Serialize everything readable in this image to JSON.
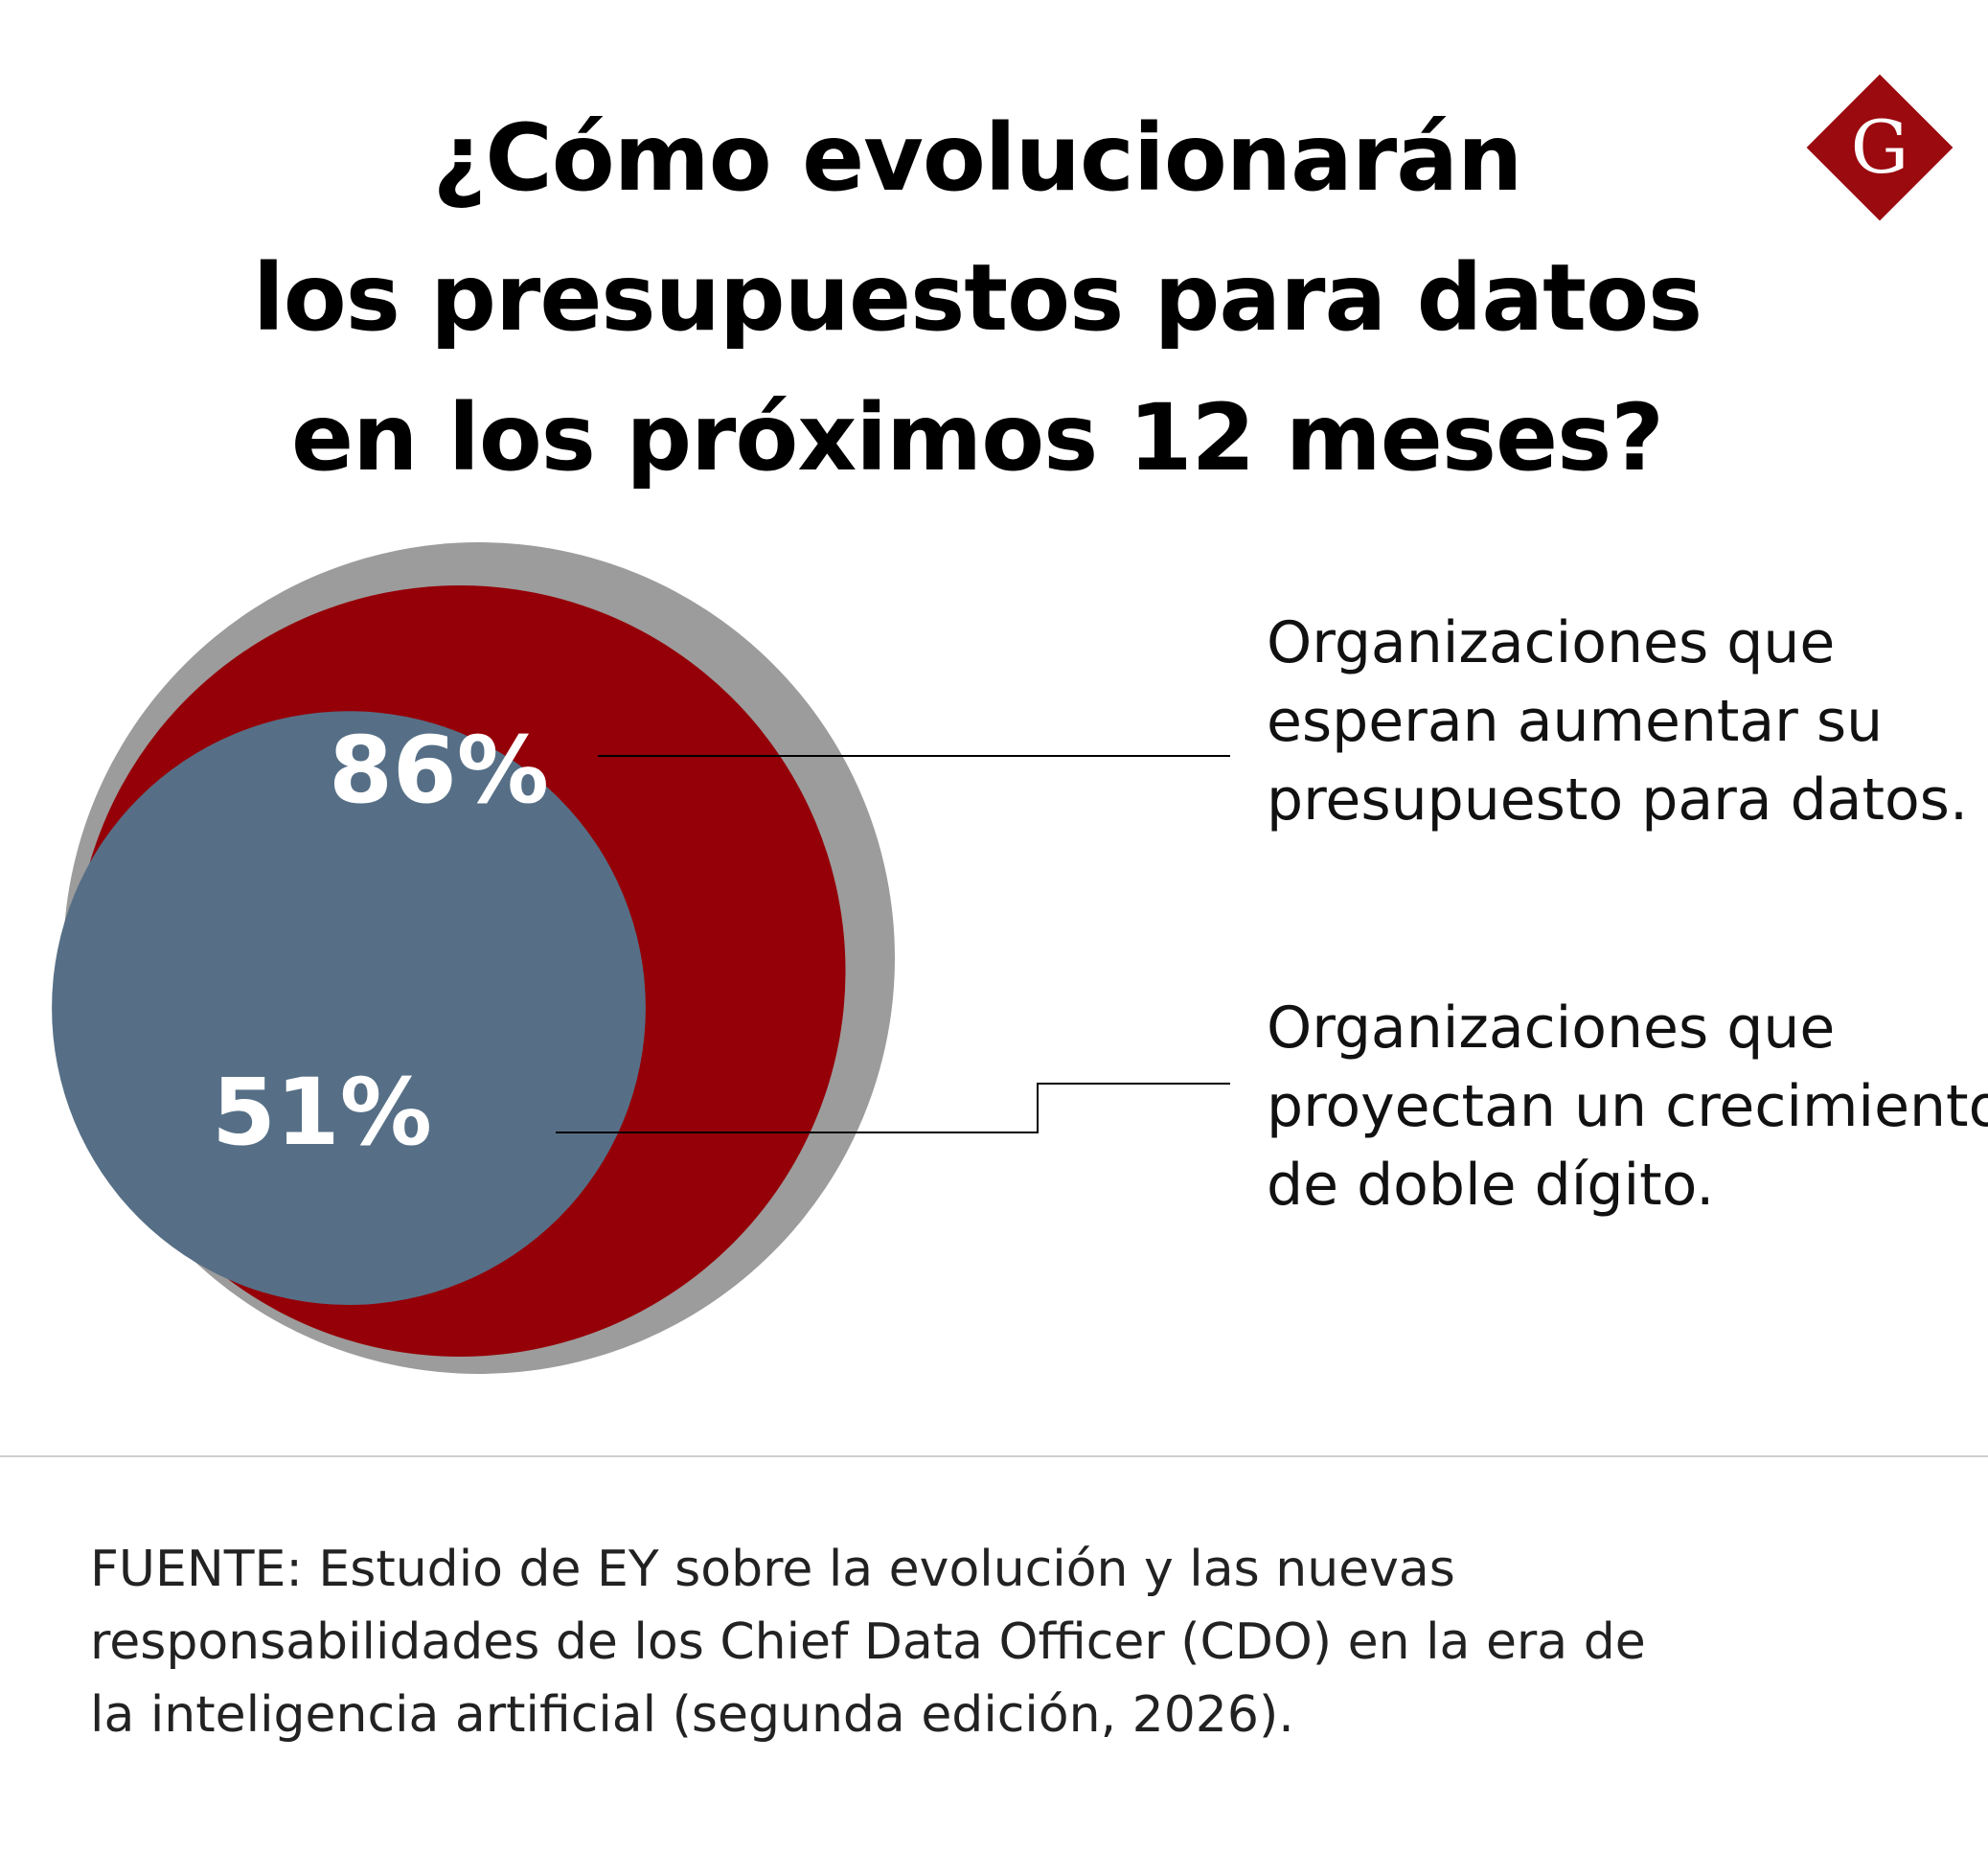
{
  "title_lines": [
    "¿Cómo evolucionarán",
    "los presupuestos para datos",
    "en los próximos 12 meses?"
  ],
  "logo": {
    "letter": "G",
    "icon": "diamond-g-logo-icon",
    "color": "#9a0a0f"
  },
  "chart_data": {
    "type": "nested-circle",
    "title": "¿Cómo evolucionarán los presupuestos para datos en los próximos 12 meses?",
    "unit": "%",
    "max": 100,
    "items": [
      {
        "label": "86%",
        "value": 86,
        "color": "#950008",
        "description_lines": [
          "Organizaciones que",
          "esperan aumentar su",
          "presupuesto para datos."
        ]
      },
      {
        "label": "51%",
        "value": 51,
        "color": "#566f86",
        "description_lines": [
          "Organizaciones que",
          "proyectan un crecimiento",
          "de doble dígito."
        ]
      }
    ],
    "background_color": "#9c9c9c"
  },
  "source_lines": [
    "FUENTE: Estudio de EY sobre la evolución y las nuevas",
    "responsabilidades de los Chief Data Officer (CDO) en la era de",
    "la inteligencia artificial (segunda edición, 2026)."
  ]
}
